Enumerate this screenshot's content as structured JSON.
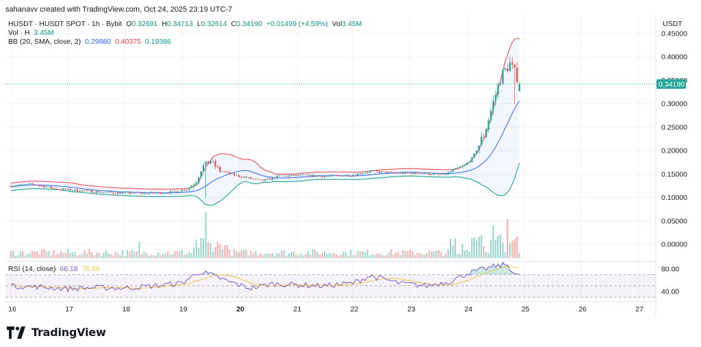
{
  "header": {
    "credit": "sahanavv created with TradingView.com, Oct 24, 2025 23:19 UTC-7"
  },
  "ohlc": {
    "symbol": "HUSDT · HUSDT SPOT · 1h · Bybit",
    "o_label": "O",
    "o": "0.32691",
    "h_label": "H",
    "h": "0.34713",
    "l_label": "L",
    "l": "0.32614",
    "c_label": "C",
    "c": "0.34190",
    "change": "+0.01499 (+4.59%)",
    "vol_label": "Vol",
    "vol": "3.45M"
  },
  "volume_legend": {
    "label": "Vol · H",
    "value": "3.45M"
  },
  "bb_legend": {
    "label": "BB (20, SMA, close, 2)",
    "basis": "0.29880",
    "upper": "0.40375",
    "lower": "0.19386"
  },
  "rsi_legend": {
    "label": "RSI (14, close)",
    "rsi": "66.18",
    "ma": "76.86"
  },
  "currency": "USDT",
  "brand": "TradingView",
  "colors": {
    "up": "#26a69a",
    "down": "#ef5350",
    "bb_upper": "#f23645",
    "bb_basis": "#2962ff",
    "bb_lower": "#089981",
    "bb_fill": "#2962ff",
    "rsi": "#7e57c2",
    "rsi_ma": "#f5c542",
    "last_price_bg": "#26a69a"
  },
  "chart_data": {
    "type": "candlestick",
    "x_tick_labels": [
      "16",
      "17",
      "18",
      "19",
      "20",
      "21",
      "22",
      "23",
      "24",
      "25",
      "26",
      "27"
    ],
    "x_range_days": [
      16,
      27.2
    ],
    "price_ticks": [
      "0.45000",
      "0.40000",
      "0.35000",
      "0.30000",
      "0.25000",
      "0.20000",
      "0.15000",
      "0.10000",
      "0.05000",
      "0.00000"
    ],
    "price_range": [
      -0.01,
      0.485
    ],
    "last_price": "0.34190",
    "last_price_value": 0.3419,
    "price_keypoints": [
      [
        16.0,
        0.125
      ],
      [
        16.4,
        0.128
      ],
      [
        16.8,
        0.118
      ],
      [
        17.3,
        0.114
      ],
      [
        17.8,
        0.11
      ],
      [
        18.3,
        0.109
      ],
      [
        18.8,
        0.111
      ],
      [
        19.1,
        0.118
      ],
      [
        19.25,
        0.135
      ],
      [
        19.35,
        0.165
      ],
      [
        19.5,
        0.178
      ],
      [
        19.65,
        0.158
      ],
      [
        19.9,
        0.148
      ],
      [
        20.1,
        0.143
      ],
      [
        20.4,
        0.135
      ],
      [
        20.7,
        0.145
      ],
      [
        21.0,
        0.147
      ],
      [
        21.5,
        0.145
      ],
      [
        22.0,
        0.148
      ],
      [
        22.3,
        0.156
      ],
      [
        22.7,
        0.152
      ],
      [
        23.2,
        0.152
      ],
      [
        23.6,
        0.148
      ],
      [
        23.75,
        0.158
      ],
      [
        23.95,
        0.168
      ],
      [
        24.1,
        0.185
      ],
      [
        24.3,
        0.235
      ],
      [
        24.45,
        0.3
      ],
      [
        24.6,
        0.36
      ],
      [
        24.75,
        0.385
      ],
      [
        24.85,
        0.362
      ],
      [
        24.95,
        0.342
      ]
    ],
    "volume_spikes": [
      [
        19.4,
        0.7
      ],
      [
        24.7,
        0.6
      ],
      [
        24.45,
        0.5
      ],
      [
        23.8,
        0.3
      ],
      [
        18.25,
        0.25
      ]
    ],
    "rsi_ticks": [
      "80.00",
      "40.00"
    ],
    "rsi_levels": {
      "upper": 70,
      "middle": 50,
      "lower": 30
    },
    "rsi_range": [
      25,
      95
    ],
    "rsi_keypoints": [
      [
        16.0,
        50
      ],
      [
        16.5,
        48
      ],
      [
        17.0,
        45
      ],
      [
        17.5,
        47
      ],
      [
        18.0,
        46
      ],
      [
        18.5,
        50
      ],
      [
        19.0,
        55
      ],
      [
        19.3,
        75
      ],
      [
        19.5,
        70
      ],
      [
        19.8,
        58
      ],
      [
        20.2,
        46
      ],
      [
        20.6,
        54
      ],
      [
        21.0,
        52
      ],
      [
        21.5,
        50
      ],
      [
        22.0,
        55
      ],
      [
        22.3,
        68
      ],
      [
        22.8,
        55
      ],
      [
        23.3,
        50
      ],
      [
        23.7,
        58
      ],
      [
        24.0,
        72
      ],
      [
        24.5,
        85
      ],
      [
        24.7,
        88
      ],
      [
        24.85,
        70
      ],
      [
        24.95,
        66
      ]
    ]
  }
}
